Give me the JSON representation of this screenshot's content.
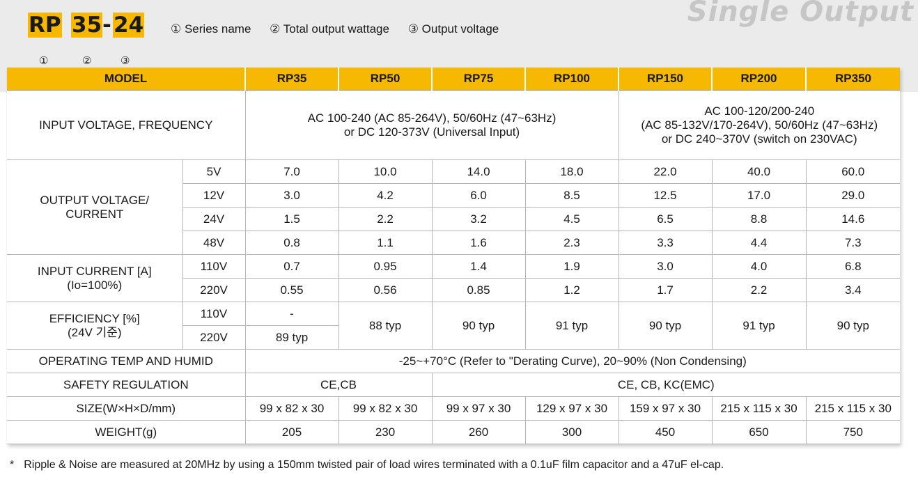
{
  "header": {
    "code_prefix": "RP",
    "code_watt": "35",
    "code_dash": "-",
    "code_volt": "24",
    "marker_1": "①",
    "marker_2": "②",
    "marker_3": "③",
    "legend_1": "① Series name",
    "legend_2": "② Total output wattage",
    "legend_3": "③ Output voltage",
    "category_title": "Single Output",
    "accent_color": "#f6b800"
  },
  "table": {
    "model_label": "MODEL",
    "models": [
      "RP35",
      "RP50",
      "RP75",
      "RP100",
      "RP150",
      "RP200",
      "RP350"
    ],
    "input_voltage": {
      "label": "INPUT VOLTAGE, FREQUENCY",
      "group_a_line1": "AC 100-240 (AC 85-264V), 50/60Hz (47~63Hz)",
      "group_a_line2": "or DC 120-373V (Universal Input)",
      "group_b_line1": "AC 100-120/200-240",
      "group_b_line2": "(AC 85-132V/170-264V), 50/60Hz (47~63Hz)",
      "group_b_line3": "or DC 240~370V (switch on 230VAC)"
    },
    "output": {
      "label_line1": "OUTPUT VOLTAGE/",
      "label_line2": "CURRENT",
      "rows": [
        {
          "v": "5V",
          "values": [
            "7.0",
            "10.0",
            "14.0",
            "18.0",
            "22.0",
            "40.0",
            "60.0"
          ]
        },
        {
          "v": "12V",
          "values": [
            "3.0",
            "4.2",
            "6.0",
            "8.5",
            "12.5",
            "17.0",
            "29.0"
          ]
        },
        {
          "v": "24V",
          "values": [
            "1.5",
            "2.2",
            "3.2",
            "4.5",
            "6.5",
            "8.8",
            "14.6"
          ]
        },
        {
          "v": "48V",
          "values": [
            "0.8",
            "1.1",
            "1.6",
            "2.3",
            "3.3",
            "4.4",
            "7.3"
          ]
        }
      ]
    },
    "input_current": {
      "label_line1": "INPUT CURRENT [A]",
      "label_line2": "(Io=100%)",
      "rows": [
        {
          "v": "110V",
          "values": [
            "0.7",
            "0.95",
            "1.4",
            "1.9",
            "3.0",
            "4.0",
            "6.8"
          ]
        },
        {
          "v": "220V",
          "values": [
            "0.55",
            "0.56",
            "0.85",
            "1.2",
            "1.7",
            "2.2",
            "3.4"
          ]
        }
      ]
    },
    "efficiency": {
      "label_line1": "EFFICIENCY [%]",
      "label_line2": "(24V 기준)",
      "v110": "110V",
      "v220": "220V",
      "rp35_110": "-",
      "rp35_220": "89 typ",
      "others": [
        "88 typ",
        "90 typ",
        "91 typ",
        "90 typ",
        "91 typ",
        "90 typ"
      ]
    },
    "operating": {
      "label": "OPERATING TEMP AND HUMID",
      "value": "-25~+70°C (Refer to \"Derating Curve), 20~90% (Non Condensing)"
    },
    "safety": {
      "label": "SAFETY REGULATION",
      "group_a": "CE,CB",
      "group_b": "CE, CB, KC(EMC)"
    },
    "size": {
      "label": "SIZE(W×H×D/mm)",
      "values": [
        "99 x 82 x 30",
        "99 x 82 x 30",
        "99 x 97 x 30",
        "129 x 97 x 30",
        "159 x 97 x 30",
        "215 x 115 x 30",
        "215 x 115 x 30"
      ]
    },
    "weight": {
      "label": "WEIGHT(g)",
      "values": [
        "205",
        "230",
        "260",
        "300",
        "450",
        "650",
        "750"
      ]
    }
  },
  "footnote": {
    "star": "*",
    "text": "Ripple & Noise are measured at 20MHz by using a 150mm twisted pair of load wires terminated with a 0.1uF film capacitor and a 47uF el-cap."
  }
}
